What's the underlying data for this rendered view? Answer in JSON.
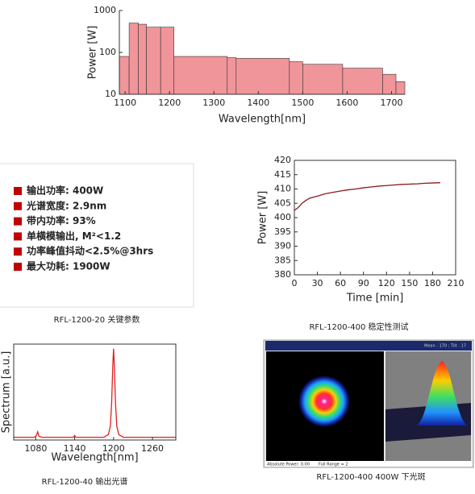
{
  "chart_data": [
    {
      "type": "histogram",
      "xlabel": "Wavelength[nm]",
      "ylabel": "Power [W]",
      "bins": [
        1087,
        1109,
        1130,
        1148,
        1180,
        1210,
        1330,
        1350,
        1470,
        1500,
        1590,
        1680,
        1710,
        1730
      ],
      "counts": [
        80,
        500,
        470,
        400,
        400,
        80,
        75,
        72,
        60,
        52,
        42,
        30,
        20
      ],
      "color": "#f0959a",
      "xlim": [
        1087,
        1730
      ],
      "xticks": [
        1100,
        1200,
        1300,
        1400,
        1500,
        1600,
        1700
      ],
      "ylim": [
        10,
        1000
      ],
      "yticks": [
        10,
        100,
        1000
      ],
      "yscale": "log",
      "grid": false
    },
    {
      "type": "line",
      "xlabel": "Time [min]",
      "ylabel": "Power [W]",
      "x": [
        0,
        5,
        10,
        15,
        20,
        30,
        40,
        50,
        60,
        70,
        80,
        90,
        100,
        110,
        120,
        130,
        140,
        150,
        160,
        170,
        180,
        190
      ],
      "values": [
        402.5,
        403.5,
        405,
        406,
        406.8,
        407.5,
        408.3,
        408.8,
        409.3,
        409.7,
        410,
        410.4,
        410.7,
        411,
        411.2,
        411.4,
        411.6,
        411.7,
        411.8,
        412,
        412.1,
        412.2
      ],
      "color": "#8b1a1a",
      "xlim": [
        0,
        210
      ],
      "xticks": [
        0,
        30,
        60,
        90,
        120,
        150,
        180,
        210
      ],
      "ylim": [
        380,
        420
      ],
      "yticks": [
        380,
        385,
        390,
        395,
        400,
        405,
        410,
        415,
        420
      ],
      "grid": false
    },
    {
      "type": "line",
      "xlabel": "Wavelength[nm]",
      "ylabel": "Spectrum [a.u.]",
      "x": [
        1046,
        1060,
        1078,
        1081,
        1083,
        1085,
        1090,
        1130,
        1138,
        1140,
        1142,
        1185,
        1192,
        1195,
        1197,
        1199,
        1200,
        1201,
        1203,
        1205,
        1208,
        1215,
        1296
      ],
      "values": [
        0.03,
        0.03,
        0.03,
        0.05,
        0.09,
        0.04,
        0.03,
        0.03,
        0.03,
        0.05,
        0.03,
        0.03,
        0.06,
        0.15,
        0.4,
        0.85,
        1.0,
        0.85,
        0.4,
        0.15,
        0.06,
        0.03,
        0.03
      ],
      "color": "#e02020",
      "xlim": [
        1046,
        1296
      ],
      "xticks": [
        1080,
        1140,
        1200,
        1260
      ],
      "ylim": [
        0,
        1.05
      ],
      "grid": false
    }
  ],
  "parameters": [
    "输出功率: 400W",
    "光谱宽度: 2.9nm",
    "带内功率: 93%",
    "单横模输出, M²<1.2",
    "功率峰值抖动<2.5%@3hrs",
    "最大功耗: 1900W"
  ],
  "captions": [
    "RFL-1200-20 关键参数",
    "RFL-1200-400 稳定性测试",
    "RFL-1200-40 输出光谱",
    "RFL-1200-400 400W 下光斑"
  ],
  "beam_image": {
    "header": "Mean - 170 ; Tilt - 17",
    "footer_left": "Absolute Power: 0.00",
    "footer_right": "Full Range = 2"
  }
}
